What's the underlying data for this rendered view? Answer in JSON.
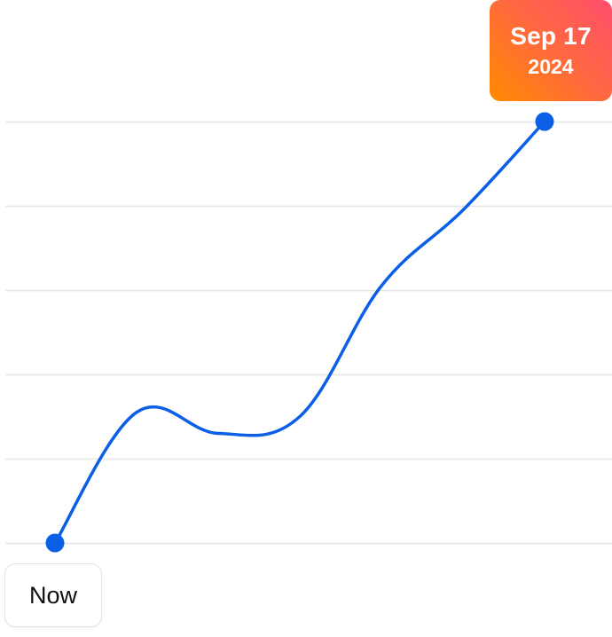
{
  "chart_data": {
    "type": "line",
    "series": [
      {
        "values": [
          0,
          1.55,
          1.3,
          1.5,
          3.05,
          3.95,
          5.0
        ]
      }
    ],
    "ylim": [
      0,
      5
    ],
    "grid": true,
    "start_label": "Now",
    "end_label": {
      "date": "Sep 17",
      "year": "2024"
    }
  },
  "colors": {
    "line": "#0a5fe6",
    "grid": "#e6e6e6",
    "badge_gradient": [
      "#ff8a00",
      "#ff4d6d"
    ]
  }
}
